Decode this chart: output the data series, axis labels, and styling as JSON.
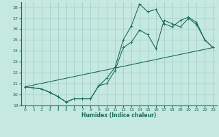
{
  "xlabel": "Humidex (Indice chaleur)",
  "xlim": [
    -0.5,
    23.5
  ],
  "ylim": [
    19,
    28.5
  ],
  "yticks": [
    19,
    20,
    21,
    22,
    23,
    24,
    25,
    26,
    27,
    28
  ],
  "xticks": [
    0,
    1,
    2,
    3,
    4,
    5,
    6,
    7,
    8,
    9,
    10,
    11,
    12,
    13,
    14,
    15,
    16,
    17,
    18,
    19,
    20,
    21,
    22,
    23
  ],
  "bg_color": "#c5e8e0",
  "line_color": "#1a6b5a",
  "grid_color": "#9eccc4",
  "line1_y": [
    20.7,
    20.6,
    20.5,
    20.2,
    19.8,
    19.3,
    19.6,
    19.6,
    19.6,
    20.8,
    21.0,
    22.2,
    24.3,
    24.8,
    25.9,
    25.5,
    24.2,
    26.8,
    26.5,
    26.2,
    27.0,
    26.4,
    25.0,
    24.3
  ],
  "line2_y": [
    20.7,
    20.6,
    20.5,
    20.2,
    19.8,
    19.3,
    19.6,
    19.6,
    19.6,
    20.8,
    21.5,
    22.5,
    25.0,
    26.3,
    28.3,
    27.6,
    27.8,
    26.5,
    26.2,
    26.8,
    27.1,
    26.6,
    25.0,
    24.3
  ],
  "line3_x": [
    0,
    23
  ],
  "line3_y": [
    20.7,
    24.3
  ],
  "marker": "+"
}
